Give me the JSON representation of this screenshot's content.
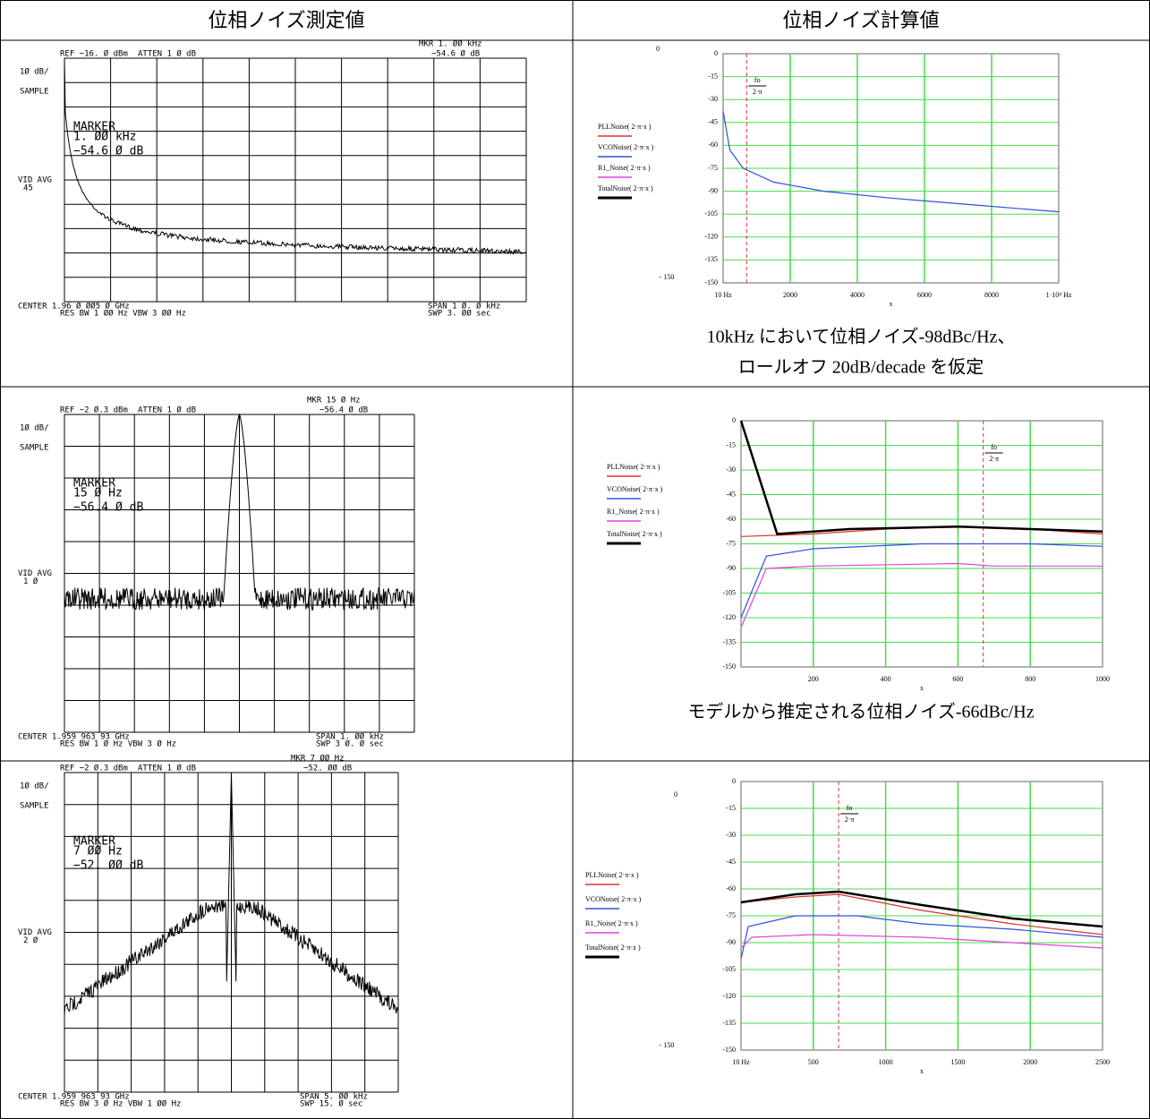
{
  "table": {
    "headers": [
      "位相ノイズ測定値",
      "位相ノイズ計算値"
    ],
    "rows": [
      {
        "measured": {
          "ref": "REF −16. Ø dBm",
          "atten": "ATTEN 1 Ø dB",
          "mkr": "MKR 1. ØØ kHz",
          "mkr_level": "−54.6 Ø dB",
          "scale": "1Ø dB/",
          "mode": "SAMPLE",
          "marker_title": "MARKER",
          "marker_freq": "1. ØØ kHz",
          "marker_level": "−54.6 Ø dB",
          "vid_avg": "VID AVG",
          "vid_avg_value": "45",
          "center": "CENTER 1.96 Ø ØØ5 Ø GHz",
          "span": "SPAN 1 Ø. Ø kHz",
          "res_bw": "RES BW 1 ØØ Hz   VBW 3 ØØ Hz",
          "swp": "SWP 3. ØØ sec"
        },
        "calculated": {
          "y_ticks": [
            "0",
            "-15",
            "-30",
            "-45",
            "-60",
            "-75",
            "-90",
            "-105",
            "-120",
            "-135",
            "-150"
          ],
          "outer_ticks": [
            "0",
            "- 150"
          ],
          "x_ticks": [
            "10 Hz",
            "2000",
            "4000",
            "6000",
            "8000",
            "1·10⁴ Hz"
          ],
          "x_label": "x",
          "marker_num": "fo",
          "marker_den": "2·π",
          "legend": [
            "PLLNoise( 2·π·x )",
            "VCONoise( 2·π·x )",
            "R1_Noise( 2·π·x )",
            "TotalNoise( 2·π·x )"
          ],
          "caption": [
            "10kHz において位相ノイズ-98dBc/Hz、",
            "ロールオフ 20dB/decade を仮定"
          ]
        }
      },
      {
        "measured": {
          "ref": "REF −2 Ø.3 dBm",
          "atten": "ATTEN 1 Ø dB",
          "mkr": "MKR 15 Ø Hz",
          "mkr_level": "−56.4 Ø dB",
          "scale": "1Ø dB/",
          "mode": "SAMPLE",
          "marker_title": "MARKER",
          "marker_freq": "15 Ø Hz",
          "marker_level": "−56.4 Ø dB",
          "vid_avg": "VID AVG",
          "vid_avg_value": "1 Ø",
          "center": "CENTER 1.959 963 93 GHz",
          "span": "SPAN 1. ØØ kHz",
          "res_bw": "RES BW 1 Ø Hz   VBW 3 Ø Hz",
          "swp": "SWP 3 Ø. Ø sec"
        },
        "calculated": {
          "y_ticks": [
            "0",
            "-15",
            "-30",
            "-45",
            "-60",
            "-75",
            "-90",
            "-105",
            "-120",
            "-135",
            "-150"
          ],
          "x_ticks": [
            "200",
            "400",
            "600",
            "800",
            "1000"
          ],
          "x_label": "x",
          "marker_num": "fo",
          "marker_den": "2·π",
          "legend": [
            "PLLNoise( 2·π·x )",
            "VCONoise( 2·π·x )",
            "R1_Noise( 2·π·x )",
            "TotalNoise( 2·π·x )"
          ],
          "caption": [
            "モデルから推定される位相ノイズ-66dBc/Hz"
          ]
        }
      },
      {
        "measured": {
          "ref": "REF −2 Ø.3 dBm",
          "atten": "ATTEN 1 Ø dB",
          "mkr": "MKR 7 ØØ Hz",
          "mkr_level": "−52. ØØ dB",
          "scale": "1Ø dB/",
          "mode": "SAMPLE",
          "marker_title": "MARKER",
          "marker_freq": "7 ØØ Hz",
          "marker_level": "−52. ØØ dB",
          "vid_avg": "VID AVG",
          "vid_avg_value": "2 Ø",
          "center": "CENTER 1.959 963 93 GHz",
          "span": "SPAN 5. ØØ kHz",
          "res_bw": "RES BW 3 Ø Hz   VBW 1 ØØ Hz",
          "swp": "SWP 15. Ø sec"
        },
        "calculated": {
          "y_ticks": [
            "0",
            "-15",
            "-30",
            "-45",
            "-60",
            "-75",
            "-90",
            "-105",
            "-120",
            "-135",
            "-150"
          ],
          "outer_ticks": [
            "0",
            "- 150"
          ],
          "x_ticks": [
            "10 Hz",
            "500",
            "1000",
            "1500",
            "2000",
            "2500"
          ],
          "x_label": "x",
          "marker_num": "fo",
          "marker_den": "2·π",
          "legend": [
            "PLLNoise( 2·π·x )",
            "VCONoise( 2·π·x )",
            "R1_Noise( 2·π·x )",
            "TotalNoise( 2·π·x )"
          ]
        }
      }
    ]
  }
}
